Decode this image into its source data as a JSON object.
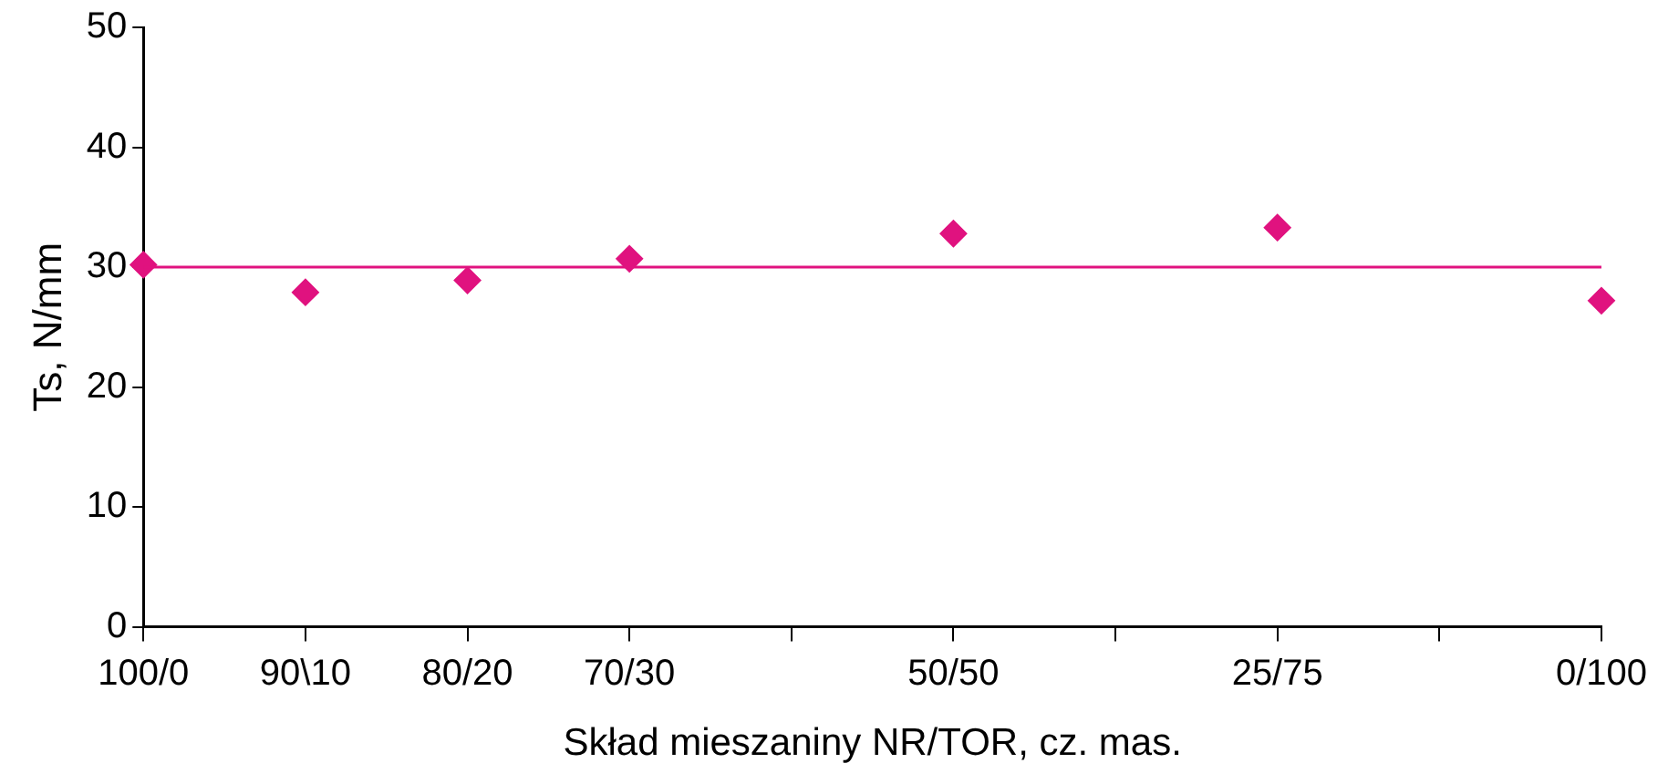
{
  "chart_data": {
    "type": "scatter",
    "xlabel": "Skład mieszaniny NR/TOR, cz. mas.",
    "ylabel": "Ts, N/mm",
    "categories": [
      "100/0",
      "90\\10",
      "80/20",
      "70/30",
      null,
      "50/50",
      null,
      "25/75",
      null,
      "0/100"
    ],
    "values": [
      30.2,
      27.9,
      28.9,
      30.7,
      null,
      32.8,
      null,
      33.3,
      null,
      27.2
    ],
    "color": "#e0127f",
    "marker": "diamond",
    "ylim": [
      0,
      50
    ],
    "yticks": [
      0,
      10,
      20,
      30,
      40,
      50
    ],
    "grid": false,
    "legend": false,
    "ref_lines": [
      {
        "axis": "y",
        "value": 30,
        "color": "#e0127f",
        "line_style": "solid"
      }
    ]
  }
}
